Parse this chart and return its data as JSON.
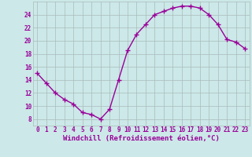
{
  "x": [
    0,
    1,
    2,
    3,
    4,
    5,
    6,
    7,
    8,
    9,
    10,
    11,
    12,
    13,
    14,
    15,
    16,
    17,
    18,
    19,
    20,
    21,
    22,
    23
  ],
  "y": [
    15.0,
    13.5,
    12.0,
    11.0,
    10.3,
    9.0,
    8.7,
    8.0,
    9.5,
    14.0,
    18.5,
    21.0,
    22.5,
    24.0,
    24.5,
    25.0,
    25.3,
    25.3,
    25.0,
    24.0,
    22.5,
    20.2,
    19.8,
    18.8
  ],
  "line_color": "#990099",
  "marker": "+",
  "markersize": 4,
  "linewidth": 1.0,
  "bg_color": "#cce8e8",
  "plot_bg_color": "#cce8e8",
  "grid_color": "#aabbbb",
  "xlabel": "Windchill (Refroidissement éolien,°C)",
  "xlabel_color": "#990099",
  "tick_color": "#990099",
  "ylim": [
    7,
    26
  ],
  "xlim": [
    -0.5,
    23.5
  ],
  "yticks": [
    8,
    10,
    12,
    14,
    16,
    18,
    20,
    22,
    24
  ],
  "xticks": [
    0,
    1,
    2,
    3,
    4,
    5,
    6,
    7,
    8,
    9,
    10,
    11,
    12,
    13,
    14,
    15,
    16,
    17,
    18,
    19,
    20,
    21,
    22,
    23
  ],
  "xtick_labels": [
    "0",
    "1",
    "2",
    "3",
    "4",
    "5",
    "6",
    "7",
    "8",
    "9",
    "10",
    "11",
    "12",
    "13",
    "14",
    "15",
    "16",
    "17",
    "18",
    "19",
    "20",
    "21",
    "22",
    "23"
  ],
  "ytick_labels": [
    "8",
    "10",
    "12",
    "14",
    "16",
    "18",
    "20",
    "22",
    "24"
  ],
  "font_size": 5.5,
  "xlabel_fontsize": 6.5
}
